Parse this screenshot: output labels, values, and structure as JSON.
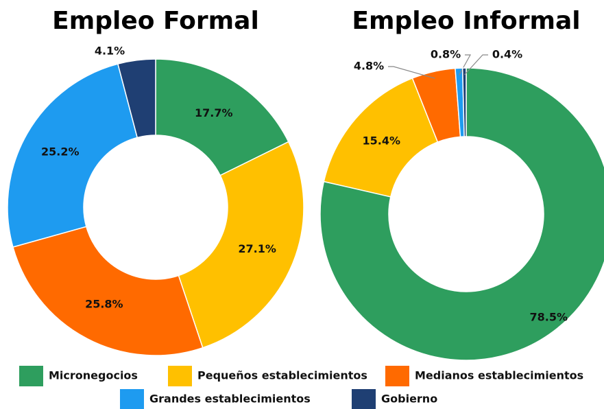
{
  "chart_data": [
    {
      "type": "pie",
      "title": "Empleo Formal",
      "categories": [
        "Micronegocios",
        "Pequeños establecimientos",
        "Medianos establecimientos",
        "Grandes establecimientos",
        "Gobierno"
      ],
      "values": [
        17.7,
        27.1,
        25.8,
        25.2,
        4.1
      ],
      "value_labels": [
        "17.7%",
        "27.1%",
        "25.8%",
        "25.2%",
        "4.1%"
      ],
      "colors": [
        "#2e9e5e",
        "#ffc000",
        "#ff6a00",
        "#1e9bf0",
        "#1f3f73"
      ]
    },
    {
      "type": "pie",
      "title": "Empleo Informal",
      "categories": [
        "Micronegocios",
        "Pequeños establecimientos",
        "Medianos establecimientos",
        "Grandes establecimientos",
        "Gobierno"
      ],
      "values": [
        78.5,
        15.4,
        4.8,
        0.8,
        0.4
      ],
      "value_labels": [
        "78.5%",
        "15.4%",
        "4.8%",
        "0.8%",
        "0.4%"
      ],
      "colors": [
        "#2e9e5e",
        "#ffc000",
        "#ff6a00",
        "#1e9bf0",
        "#1f3f73"
      ]
    }
  ]
}
